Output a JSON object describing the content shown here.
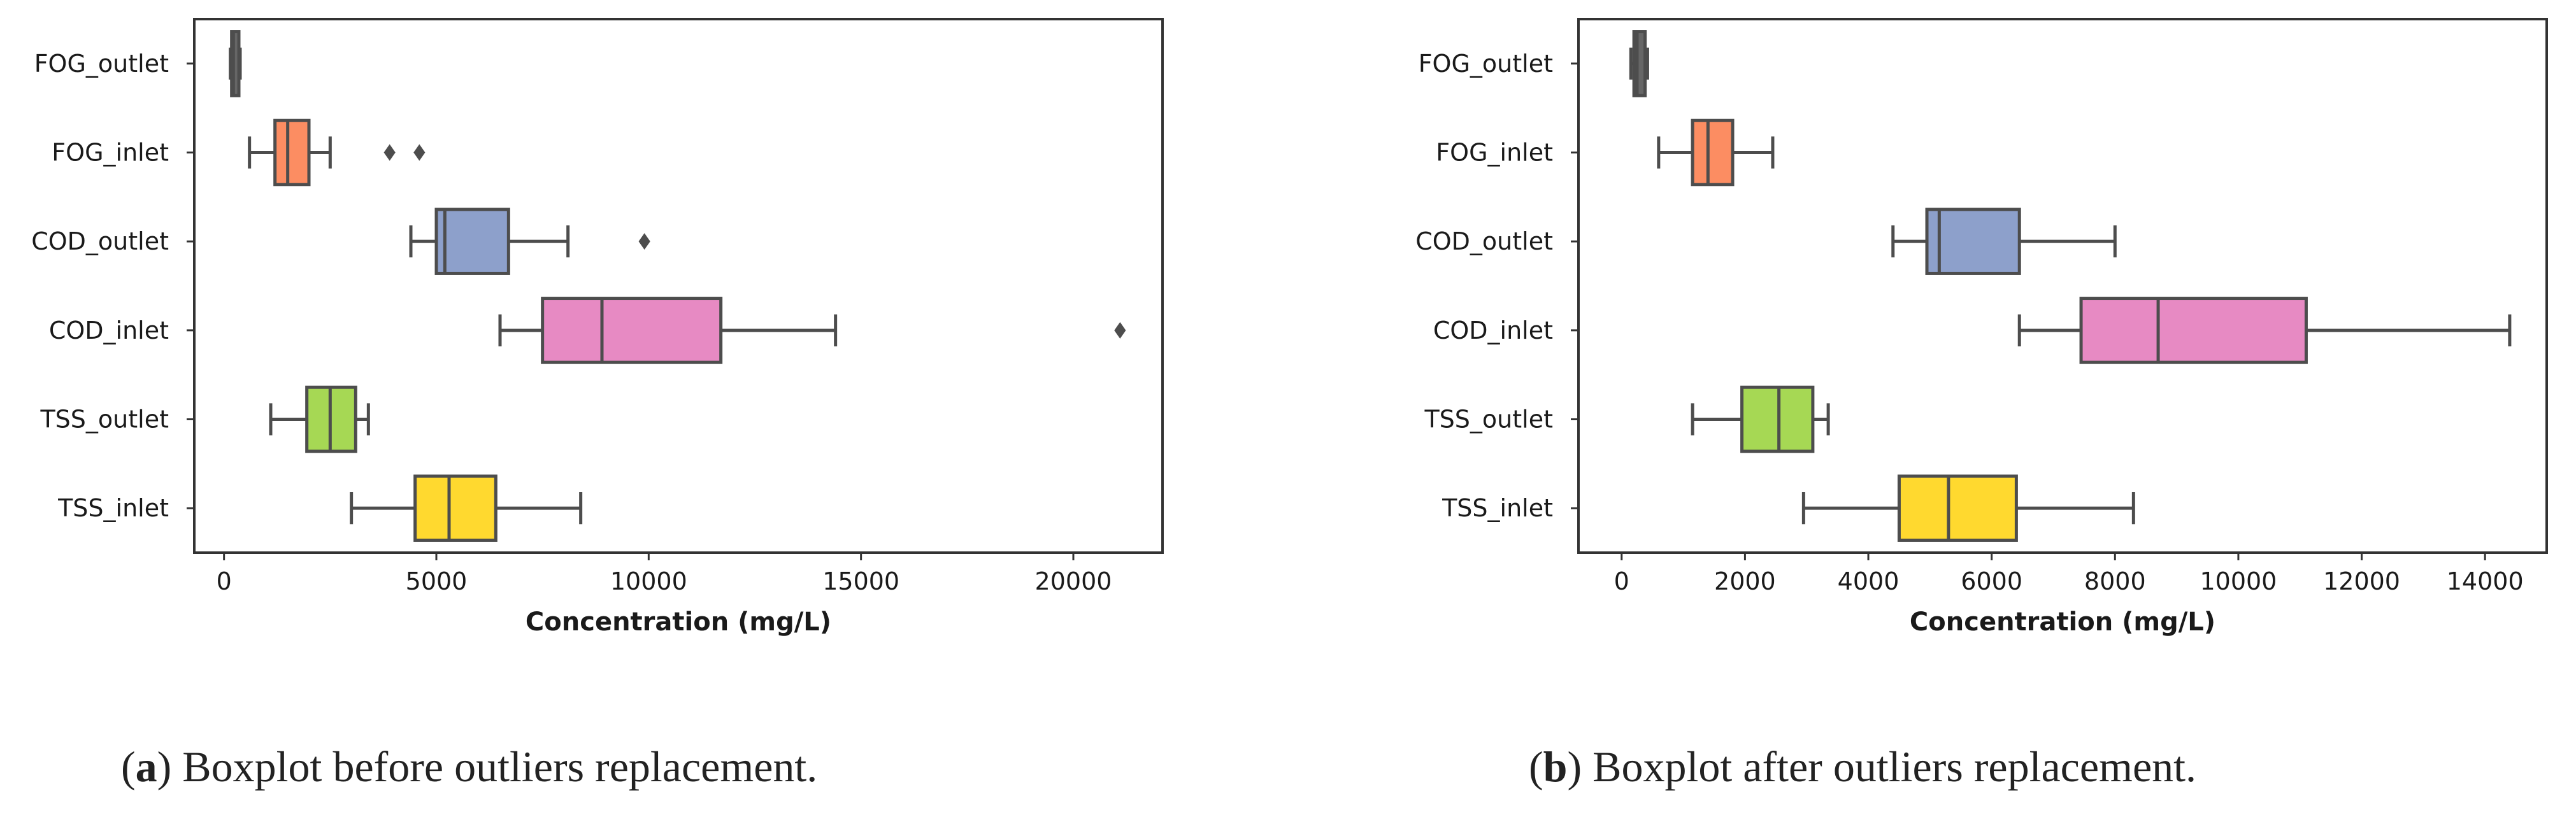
{
  "figure": {
    "captions": [
      {
        "letter": "a",
        "text": ") Boxplot before outliers replacement."
      },
      {
        "letter": "b",
        "text": ") Boxplot after outliers replacement."
      }
    ]
  },
  "chart_data": [
    {
      "type": "boxplot",
      "xlabel": "Concentration (mg/L)",
      "ylabel": "",
      "xlim": [
        -700,
        22100
      ],
      "xticks": [
        0,
        5000,
        10000,
        15000,
        20000
      ],
      "grid": false,
      "categories": [
        "FOG_outlet",
        "FOG_inlet",
        "COD_outlet",
        "COD_inlet",
        "TSS_outlet",
        "TSS_inlet"
      ],
      "colors": [
        "#666666",
        "#fc8d62",
        "#8da0cb",
        "#e78ac3",
        "#a6d854",
        "#ffd92f"
      ],
      "boxes": [
        {
          "name": "FOG_outlet",
          "whislo": 150,
          "q1": 180,
          "med": 220,
          "q3": 350,
          "whishi": 380,
          "fliers": []
        },
        {
          "name": "FOG_inlet",
          "whislo": 600,
          "q1": 1200,
          "med": 1500,
          "q3": 2000,
          "whishi": 2500,
          "fliers": [
            3900,
            4600
          ]
        },
        {
          "name": "COD_outlet",
          "whislo": 4400,
          "q1": 5000,
          "med": 5200,
          "q3": 6700,
          "whishi": 8100,
          "fliers": [
            9900
          ]
        },
        {
          "name": "COD_inlet",
          "whislo": 6500,
          "q1": 7500,
          "med": 8900,
          "q3": 11700,
          "whishi": 14400,
          "fliers": [
            21100
          ]
        },
        {
          "name": "TSS_outlet",
          "whislo": 1100,
          "q1": 1950,
          "med": 2500,
          "q3": 3100,
          "whishi": 3400,
          "fliers": []
        },
        {
          "name": "TSS_inlet",
          "whislo": 3000,
          "q1": 4500,
          "med": 5300,
          "q3": 6400,
          "whishi": 8400,
          "fliers": []
        }
      ]
    },
    {
      "type": "boxplot",
      "xlabel": "Concentration (mg/L)",
      "ylabel": "",
      "xlim": [
        -700,
        15000
      ],
      "xticks": [
        0,
        2000,
        4000,
        6000,
        8000,
        10000,
        12000,
        14000
      ],
      "grid": false,
      "categories": [
        "FOG_outlet",
        "FOG_inlet",
        "COD_outlet",
        "COD_inlet",
        "TSS_outlet",
        "TSS_inlet"
      ],
      "colors": [
        "#666666",
        "#fc8d62",
        "#8da0cb",
        "#e78ac3",
        "#a6d854",
        "#ffd92f"
      ],
      "boxes": [
        {
          "name": "FOG_outlet",
          "whislo": 150,
          "q1": 200,
          "med": 250,
          "q3": 380,
          "whishi": 420,
          "fliers": []
        },
        {
          "name": "FOG_inlet",
          "whislo": 600,
          "q1": 1150,
          "med": 1400,
          "q3": 1800,
          "whishi": 2450,
          "fliers": []
        },
        {
          "name": "COD_outlet",
          "whislo": 4400,
          "q1": 4950,
          "med": 5150,
          "q3": 6450,
          "whishi": 8000,
          "fliers": []
        },
        {
          "name": "COD_inlet",
          "whislo": 6450,
          "q1": 7450,
          "med": 8700,
          "q3": 11100,
          "whishi": 14400,
          "fliers": []
        },
        {
          "name": "TSS_outlet",
          "whislo": 1150,
          "q1": 1950,
          "med": 2550,
          "q3": 3100,
          "whishi": 3350,
          "fliers": []
        },
        {
          "name": "TSS_inlet",
          "whislo": 2950,
          "q1": 4500,
          "med": 5300,
          "q3": 6400,
          "whishi": 8300,
          "fliers": []
        }
      ]
    }
  ]
}
